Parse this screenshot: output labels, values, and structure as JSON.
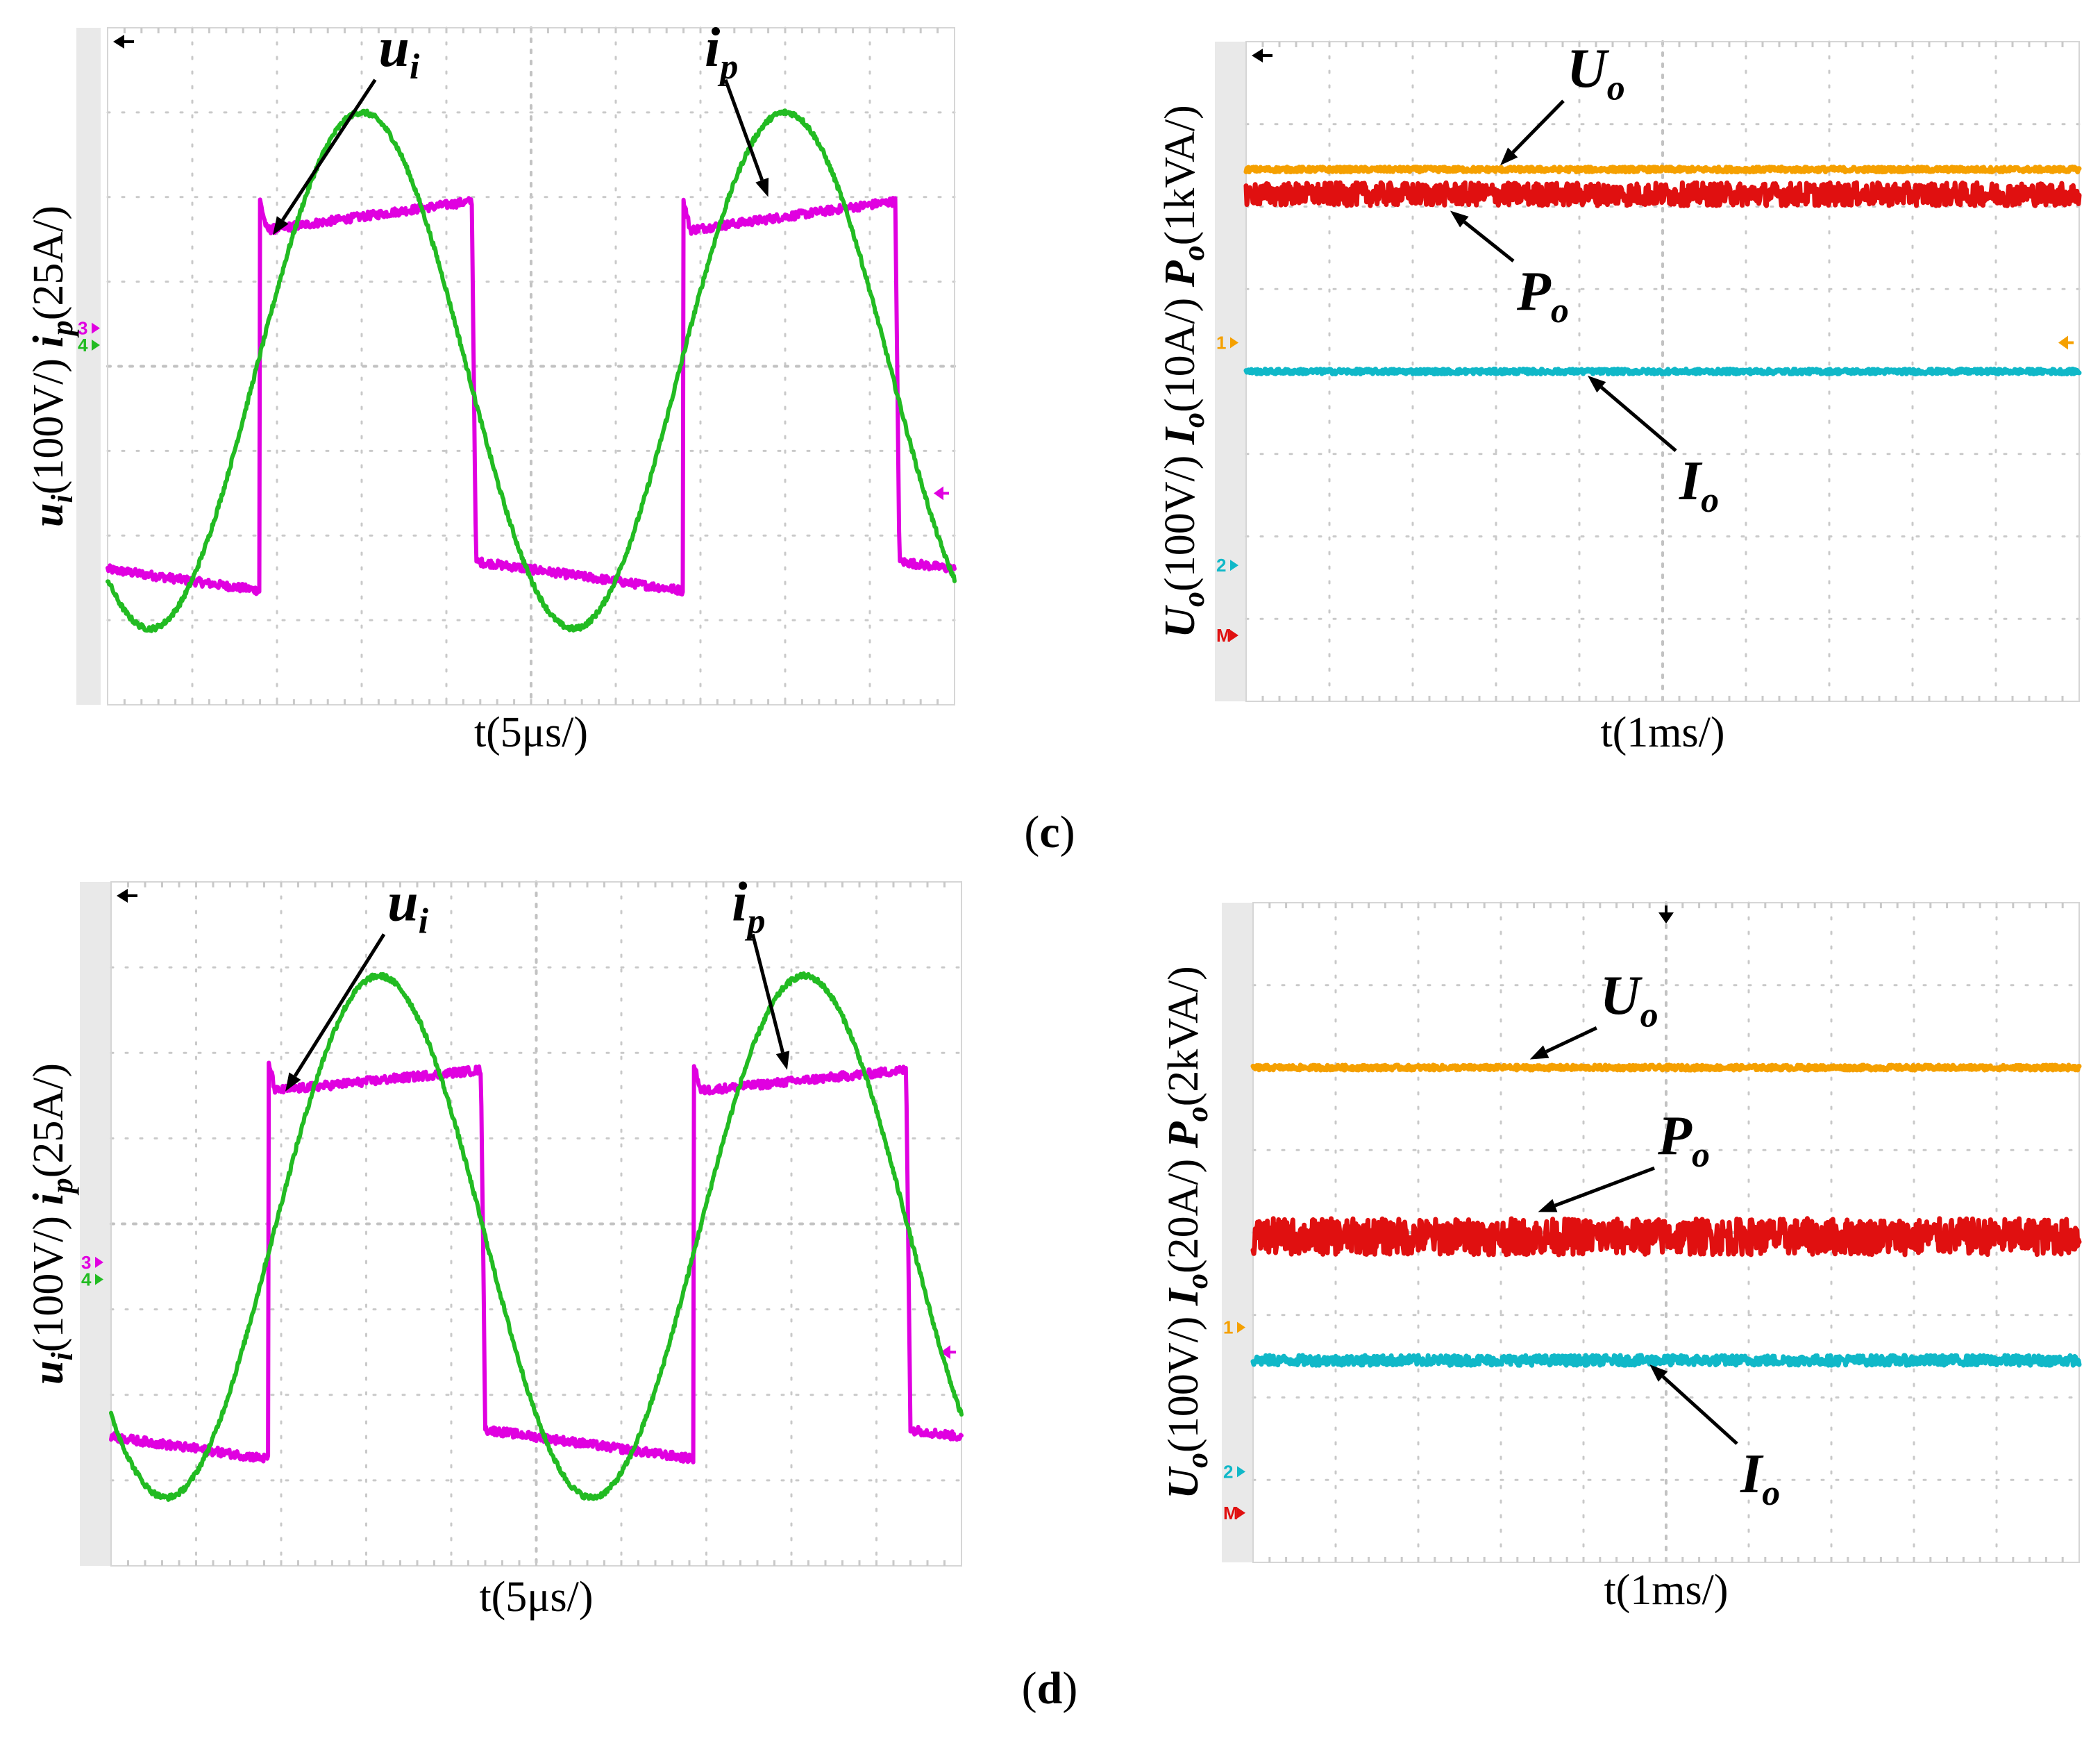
{
  "chart_data": [
    {
      "id": "c-left",
      "type": "line",
      "subfigure": "c",
      "title": "",
      "xlabel": "t(5μs/)",
      "ylabel_parts": [
        {
          "sym": "u",
          "sub": "i",
          "unit": "(100V/)"
        },
        {
          "sym": "i",
          "sub": "p",
          "unit": "(25A/)"
        }
      ],
      "x_divisions": 10,
      "y_divisions": 8,
      "xlim": [
        0,
        10
      ],
      "ylim": [
        -4,
        4
      ],
      "channel_markers": [
        {
          "label": "3",
          "level": 0.45,
          "color": "#e000e0"
        },
        {
          "label": "4",
          "level": 0.25,
          "color": "#22bb22"
        }
      ],
      "trigger_marker": {
        "glyph": "◂",
        "level": -1.5,
        "color": "#e000e0"
      },
      "series": [
        {
          "name": "u_i",
          "color": "#e000e0",
          "kind": "square",
          "period": 5,
          "phase": 1.8,
          "duty": 0.5,
          "high": 1.6,
          "high_end": 1.95,
          "low": -2.3,
          "low_end": -2.65
        },
        {
          "name": "i_p",
          "color": "#22bb22",
          "kind": "sine",
          "period": 5,
          "amplitude": 3.05,
          "peak_at": 3.0,
          "offset": -0.05
        }
      ],
      "annotations": [
        {
          "sym": "u",
          "sub": "i"
        },
        {
          "sym": "i",
          "sub": "p"
        }
      ]
    },
    {
      "id": "c-right",
      "type": "line",
      "subfigure": "c",
      "title": "",
      "xlabel": "t(1ms/)",
      "ylabel_parts": [
        {
          "sym": "U",
          "sub": "o",
          "unit": "(100V/)"
        },
        {
          "sym": "I",
          "sub": "o",
          "unit": "(10A/)"
        },
        {
          "sym": "P",
          "sub": "o",
          "unit": "(1kVA/)"
        }
      ],
      "x_divisions": 10,
      "y_divisions": 8,
      "xlim": [
        0,
        10
      ],
      "ylim": [
        -4,
        4
      ],
      "channel_markers": [
        {
          "label": "1",
          "level": 0.35,
          "color": "#f5a000"
        },
        {
          "label": "2",
          "level": -2.35,
          "color": "#10b8c8"
        },
        {
          "label": "M",
          "level": -3.2,
          "color": "#e01010"
        }
      ],
      "trigger_marker": {
        "glyph": "◂",
        "level": 0.35,
        "color": "#f5a000"
      },
      "series": [
        {
          "name": "U_o",
          "color": "#f5a000",
          "kind": "flat",
          "level": 2.45,
          "noise": 0.03
        },
        {
          "name": "P_o",
          "color": "#e01010",
          "kind": "flat",
          "level": 2.15,
          "noise": 0.14
        },
        {
          "name": "I_o",
          "color": "#10b8c8",
          "kind": "flat",
          "level": 0.0,
          "noise": 0.03
        }
      ],
      "annotations": [
        {
          "sym": "U",
          "sub": "o"
        },
        {
          "sym": "P",
          "sub": "o"
        },
        {
          "sym": "I",
          "sub": "o"
        }
      ]
    },
    {
      "id": "d-left",
      "type": "line",
      "subfigure": "d",
      "title": "",
      "xlabel": "t(5μs/)",
      "ylabel_parts": [
        {
          "sym": "u",
          "sub": "i",
          "unit": "(100V/)"
        },
        {
          "sym": "i",
          "sub": "p",
          "unit": "(25A/)"
        }
      ],
      "x_divisions": 10,
      "y_divisions": 8,
      "xlim": [
        0,
        10
      ],
      "ylim": [
        -4,
        4
      ],
      "channel_markers": [
        {
          "label": "3",
          "level": -0.45,
          "color": "#e000e0"
        },
        {
          "label": "4",
          "level": -0.65,
          "color": "#22bb22"
        }
      ],
      "trigger_marker": {
        "glyph": "◂",
        "level": -1.5,
        "color": "#e000e0"
      },
      "series": [
        {
          "name": "u_i",
          "color": "#e000e0",
          "kind": "square",
          "period": 5,
          "phase": 1.85,
          "duty": 0.5,
          "high": 1.55,
          "high_end": 1.8,
          "low": -2.4,
          "low_end": -2.75
        },
        {
          "name": "i_p",
          "color": "#22bb22",
          "kind": "sine",
          "period": 5,
          "amplitude": 3.05,
          "peak_at": 3.15,
          "offset": -0.15
        }
      ],
      "annotations": [
        {
          "sym": "u",
          "sub": "i"
        },
        {
          "sym": "i",
          "sub": "p"
        }
      ]
    },
    {
      "id": "d-right",
      "type": "line",
      "subfigure": "d",
      "title": "",
      "xlabel": "t(1ms/)",
      "ylabel_parts": [
        {
          "sym": "U",
          "sub": "o",
          "unit": "(100V/)"
        },
        {
          "sym": "I",
          "sub": "o",
          "unit": "(20A/)"
        },
        {
          "sym": "P",
          "sub": "o",
          "unit": "(2kVA/)"
        }
      ],
      "x_divisions": 10,
      "y_divisions": 8,
      "xlim": [
        0,
        10
      ],
      "ylim": [
        -4,
        4
      ],
      "channel_markers": [
        {
          "label": "1",
          "level": -1.15,
          "color": "#f5a000"
        },
        {
          "label": "2",
          "level": -2.9,
          "color": "#10b8c8"
        },
        {
          "label": "M",
          "level": -3.4,
          "color": "#e01010"
        }
      ],
      "trigger_marker": {
        "glyph": "▾",
        "level": 4,
        "color": "#000000"
      },
      "series": [
        {
          "name": "U_o",
          "color": "#f5a000",
          "kind": "flat",
          "level": 2.0,
          "noise": 0.03
        },
        {
          "name": "P_o",
          "color": "#e01010",
          "kind": "flat",
          "level": -0.05,
          "noise": 0.22
        },
        {
          "name": "I_o",
          "color": "#10b8c8",
          "kind": "flat",
          "level": -1.55,
          "noise": 0.06
        }
      ],
      "annotations": [
        {
          "sym": "U",
          "sub": "o"
        },
        {
          "sym": "P",
          "sub": "o"
        },
        {
          "sym": "I",
          "sub": "o"
        }
      ]
    }
  ],
  "captions": {
    "c": "c",
    "d": "d"
  }
}
